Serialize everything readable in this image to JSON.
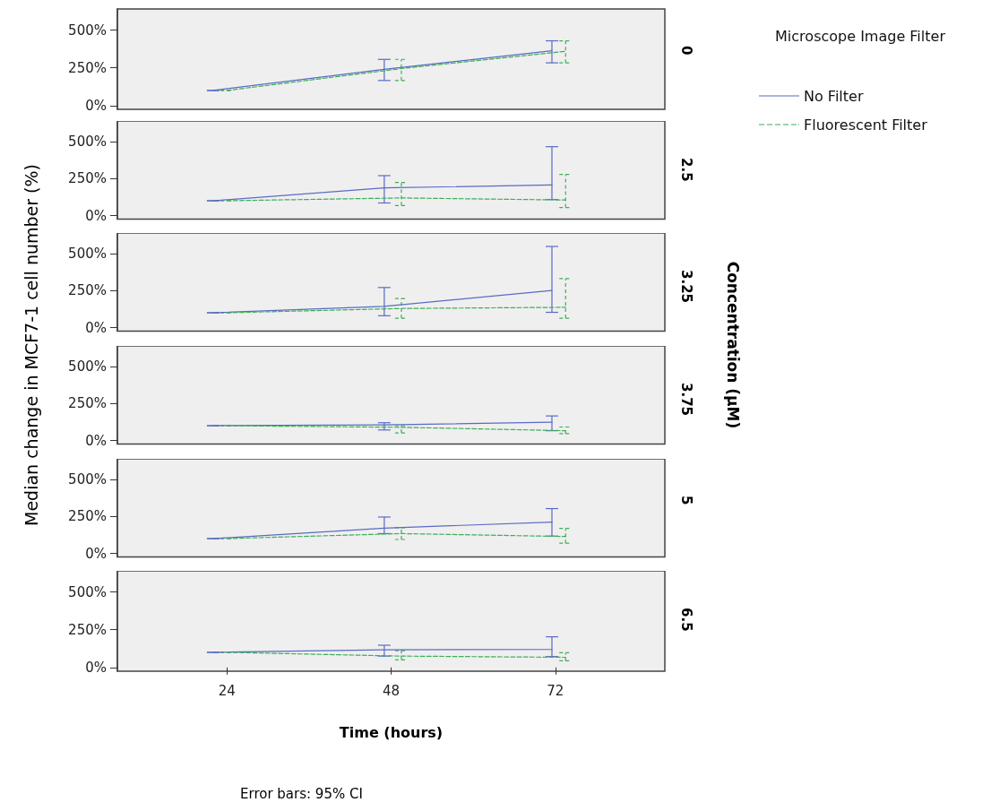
{
  "chart_data": [
    {
      "type": "line",
      "ylabel": "Median change in MCF7-1 cell number (%)",
      "legend_title": "Microscope Image Filter",
      "legend": "right",
      "annotations": [
        "0",
        "Concentration (μM)"
      ],
      "xlim": [
        8,
        88
      ],
      "xticks": [
        24,
        48,
        72
      ],
      "ylim": [
        -25,
        640
      ],
      "yticks": [
        {
          "value": 0,
          "label": "0%"
        },
        {
          "value": 250,
          "label": "250%"
        },
        {
          "value": 500,
          "label": "500%"
        }
      ],
      "tick_labels": "y",
      "marker": "none",
      "grid": false,
      "series": [
        {
          "name": "No Filter",
          "color": "#5a6bc4",
          "line_style": "solid",
          "x": [
            22,
            47,
            71.5
          ],
          "values": [
            100,
            240,
            363
          ],
          "errors": [
            [
              100,
              100
            ],
            [
              166,
              306
            ],
            [
              283,
              429
            ]
          ]
        },
        {
          "name": "Fluorescent Filter",
          "color": "#3fae5a",
          "line_style": "dashed",
          "x": [
            24,
            49.5,
            73.5
          ],
          "values": [
            100,
            245,
            360
          ],
          "errors": [
            [
              100,
              100
            ],
            [
              166,
              306
            ],
            [
              283,
              429
            ]
          ]
        }
      ]
    },
    {
      "type": "line",
      "annotations": [
        "2.5"
      ],
      "xlim": [
        8,
        88
      ],
      "xticks": [
        24,
        48,
        72
      ],
      "ylim": [
        -25,
        640
      ],
      "yticks": [
        {
          "value": 0,
          "label": "0%"
        },
        {
          "value": 250,
          "label": "250%"
        },
        {
          "value": 500,
          "label": "500%"
        }
      ],
      "tick_labels": "y",
      "marker": "none",
      "grid": false,
      "series": [
        {
          "color": "#5a6bc4",
          "line_style": "solid",
          "x": [
            22,
            47,
            71.5
          ],
          "values": [
            100,
            187,
            207
          ],
          "errors": [
            [
              100,
              100
            ],
            [
              85,
              270
            ],
            [
              108,
              466
            ]
          ]
        },
        {
          "color": "#3fae5a",
          "line_style": "dashed",
          "x": [
            24,
            49.5,
            73.5
          ],
          "values": [
            100,
            119,
            105
          ],
          "errors": [
            [
              100,
              100
            ],
            [
              68,
              224
            ],
            [
              54,
              278
            ]
          ]
        }
      ]
    },
    {
      "type": "line",
      "annotations": [
        "3.25"
      ],
      "xlim": [
        8,
        88
      ],
      "xticks": [
        24,
        48,
        72
      ],
      "ylim": [
        -25,
        640
      ],
      "yticks": [
        {
          "value": 0,
          "label": "0%"
        },
        {
          "value": 250,
          "label": "250%"
        },
        {
          "value": 500,
          "label": "500%"
        }
      ],
      "tick_labels": "y",
      "marker": "none",
      "grid": false,
      "series": [
        {
          "color": "#5a6bc4",
          "line_style": "solid",
          "x": [
            22,
            47,
            71.5
          ],
          "values": [
            100,
            143,
            251
          ],
          "errors": [
            [
              100,
              100
            ],
            [
              80,
              271
            ],
            [
              103,
              549
            ]
          ]
        },
        {
          "color": "#3fae5a",
          "line_style": "dashed",
          "x": [
            24,
            49.5,
            73.5
          ],
          "values": [
            100,
            129,
            137
          ],
          "errors": [
            [
              100,
              100
            ],
            [
              63,
              197
            ],
            [
              63,
              331
            ]
          ]
        }
      ]
    },
    {
      "type": "line",
      "annotations": [
        "3.75"
      ],
      "xlim": [
        8,
        88
      ],
      "xticks": [
        24,
        48,
        72
      ],
      "ylim": [
        -25,
        640
      ],
      "yticks": [
        {
          "value": 0,
          "label": "0%"
        },
        {
          "value": 250,
          "label": "250%"
        },
        {
          "value": 500,
          "label": "500%"
        }
      ],
      "tick_labels": "y",
      "marker": "none",
      "grid": false,
      "series": [
        {
          "color": "#5a6bc4",
          "line_style": "solid",
          "x": [
            22,
            47,
            71.5
          ],
          "values": [
            100,
            106,
            123
          ],
          "errors": [
            [
              100,
              100
            ],
            [
              71,
              120
            ],
            [
              66,
              166
            ]
          ]
        },
        {
          "color": "#3fae5a",
          "line_style": "dashed",
          "x": [
            24,
            49.5,
            73.5
          ],
          "values": [
            100,
            89,
            66
          ],
          "errors": [
            [
              100,
              100
            ],
            [
              51,
              100
            ],
            [
              46,
              91
            ]
          ]
        }
      ]
    },
    {
      "type": "line",
      "annotations": [
        "5"
      ],
      "xlim": [
        8,
        88
      ],
      "xticks": [
        24,
        48,
        72
      ],
      "ylim": [
        -25,
        640
      ],
      "yticks": [
        {
          "value": 0,
          "label": "0%"
        },
        {
          "value": 250,
          "label": "250%"
        },
        {
          "value": 500,
          "label": "500%"
        }
      ],
      "tick_labels": "y",
      "marker": "none",
      "grid": false,
      "series": [
        {
          "color": "#5a6bc4",
          "line_style": "solid",
          "x": [
            22,
            47,
            71.5
          ],
          "values": [
            100,
            171,
            211
          ],
          "errors": [
            [
              100,
              100
            ],
            [
              134,
              246
            ],
            [
              117,
              303
            ]
          ]
        },
        {
          "color": "#3fae5a",
          "line_style": "dashed",
          "x": [
            24,
            49.5,
            73.5
          ],
          "values": [
            100,
            134,
            114
          ],
          "errors": [
            [
              100,
              100
            ],
            [
              94,
              174
            ],
            [
              69,
              169
            ]
          ]
        }
      ]
    },
    {
      "type": "line",
      "xlabel": "Time (hours)",
      "annotations": [
        "6.5",
        "Error bars: 95% CI"
      ],
      "xlim": [
        8,
        88
      ],
      "xticks": [
        24,
        48,
        72
      ],
      "ylim": [
        -25,
        640
      ],
      "yticks": [
        {
          "value": 0,
          "label": "0%"
        },
        {
          "value": 250,
          "label": "250%"
        },
        {
          "value": 500,
          "label": "500%"
        }
      ],
      "marker": "none",
      "grid": false,
      "series": [
        {
          "color": "#5a6bc4",
          "line_style": "solid",
          "x": [
            22,
            47,
            71.5
          ],
          "values": [
            100,
            117,
            119
          ],
          "errors": [
            [
              100,
              100
            ],
            [
              75,
              147
            ],
            [
              72,
              203
            ]
          ]
        },
        {
          "color": "#3fae5a",
          "line_style": "dashed",
          "x": [
            24,
            49.5,
            73.5
          ],
          "values": [
            100,
            75,
            67
          ],
          "errors": [
            [
              100,
              100
            ],
            [
              50,
              111
            ],
            [
              44,
              97
            ]
          ]
        }
      ]
    }
  ]
}
